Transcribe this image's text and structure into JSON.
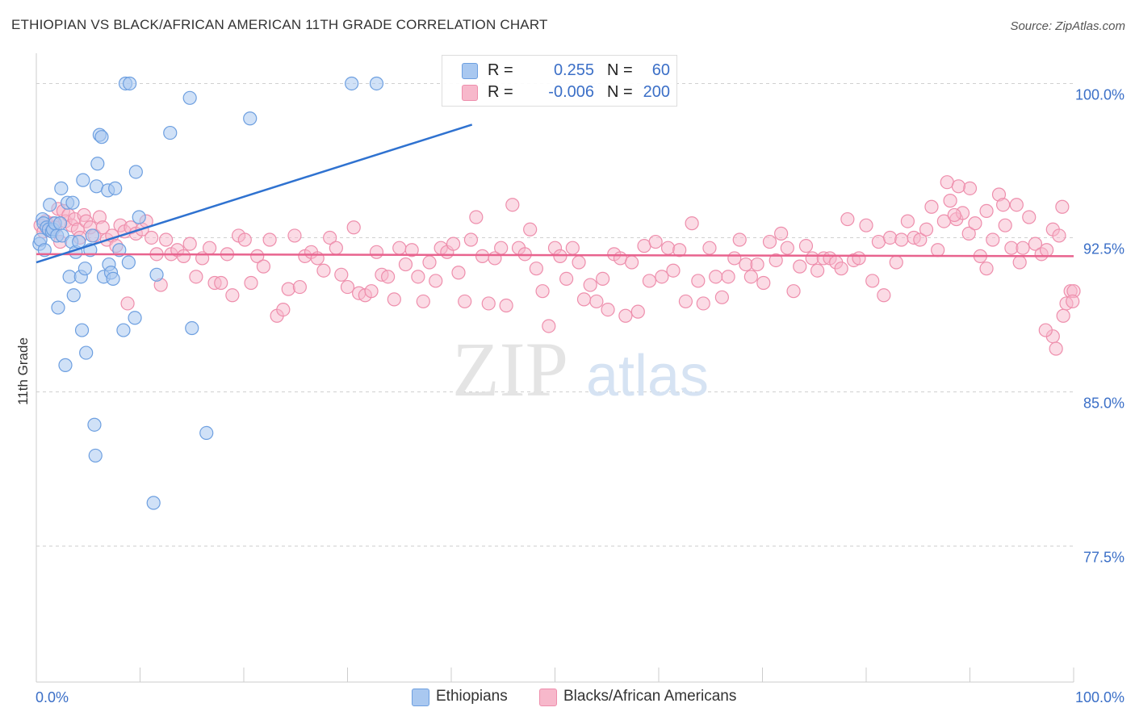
{
  "title": "ETHIOPIAN VS BLACK/AFRICAN AMERICAN 11TH GRADE CORRELATION CHART",
  "source": "Source: ZipAtlas.com",
  "watermark": {
    "zip": "ZIP",
    "atlas": "atlas"
  },
  "legend": {
    "series1": {
      "r_label": "R =",
      "r_value": "0.255",
      "n_label": "N =",
      "n_value": "60",
      "color": "#a9c8f0"
    },
    "series2": {
      "r_label": "R =",
      "r_value": "-0.006",
      "n_label": "N =",
      "n_value": "200",
      "color": "#f7b8cb"
    }
  },
  "bottom_legend": [
    {
      "label": "Ethiopians",
      "color": "#a9c8f0"
    },
    {
      "label": "Blacks/African Americans",
      "color": "#f7b8cb"
    }
  ],
  "chart_data": {
    "type": "scatter",
    "title": "ETHIOPIAN VS BLACK/AFRICAN AMERICAN 11TH GRADE CORRELATION CHART",
    "xlabel": "",
    "ylabel": "11th Grade",
    "xlim": [
      0,
      100
    ],
    "ylim": [
      71,
      101
    ],
    "x_tick_labels": [
      "0.0%",
      "100.0%"
    ],
    "y_ticks": [
      77.5,
      85.0,
      92.5,
      100.0
    ],
    "y_tick_labels": [
      "77.5%",
      "85.0%",
      "92.5%",
      "100.0%"
    ],
    "grid": "horizontal dashed",
    "colors": {
      "ethiopians_fill": "#a9c8f0",
      "ethiopians_stroke": "#6d9fe0",
      "ethiopians_line": "#2f72d0",
      "blacks_fill": "#f7b8cb",
      "blacks_stroke": "#ee8eac",
      "blacks_line": "#e8638e",
      "axis_text": "#3b6fc7"
    },
    "series": [
      {
        "name": "Ethiopians",
        "trend": {
          "x": [
            0,
            42
          ],
          "y": [
            91.3,
            98.0
          ]
        },
        "points": [
          [
            0.3,
            92.2
          ],
          [
            0.4,
            92.4
          ],
          [
            0.6,
            93.4
          ],
          [
            0.7,
            93.2
          ],
          [
            0.8,
            91.9
          ],
          [
            1.0,
            93.0
          ],
          [
            1.2,
            92.9
          ],
          [
            1.3,
            94.1
          ],
          [
            1.5,
            92.8
          ],
          [
            1.6,
            92.9
          ],
          [
            1.8,
            93.2
          ],
          [
            2.0,
            92.6
          ],
          [
            2.1,
            89.1
          ],
          [
            2.3,
            93.2
          ],
          [
            2.4,
            94.9
          ],
          [
            2.5,
            92.6
          ],
          [
            2.8,
            86.3
          ],
          [
            3.0,
            94.2
          ],
          [
            3.2,
            90.6
          ],
          [
            3.4,
            92.3
          ],
          [
            3.5,
            94.2
          ],
          [
            3.6,
            89.7
          ],
          [
            3.8,
            91.8
          ],
          [
            4.1,
            92.3
          ],
          [
            4.3,
            90.6
          ],
          [
            4.4,
            88.0
          ],
          [
            4.5,
            95.3
          ],
          [
            4.7,
            91.0
          ],
          [
            4.8,
            86.9
          ],
          [
            5.2,
            91.9
          ],
          [
            5.4,
            92.6
          ],
          [
            5.6,
            83.4
          ],
          [
            5.7,
            81.9
          ],
          [
            5.8,
            95.0
          ],
          [
            5.9,
            96.1
          ],
          [
            6.1,
            97.5
          ],
          [
            6.3,
            97.4
          ],
          [
            6.5,
            90.6
          ],
          [
            6.9,
            94.8
          ],
          [
            7.0,
            91.2
          ],
          [
            7.2,
            90.8
          ],
          [
            7.4,
            90.5
          ],
          [
            7.6,
            94.9
          ],
          [
            8.0,
            91.9
          ],
          [
            8.4,
            88.0
          ],
          [
            8.6,
            100.0
          ],
          [
            8.9,
            91.3
          ],
          [
            9.0,
            100.0
          ],
          [
            9.5,
            88.6
          ],
          [
            9.6,
            95.7
          ],
          [
            9.9,
            93.5
          ],
          [
            11.3,
            79.6
          ],
          [
            11.6,
            90.7
          ],
          [
            12.9,
            97.6
          ],
          [
            14.8,
            99.3
          ],
          [
            15.0,
            88.1
          ],
          [
            16.4,
            83.0
          ],
          [
            20.6,
            98.3
          ],
          [
            30.4,
            100.0
          ],
          [
            32.8,
            100.0
          ]
        ]
      },
      {
        "name": "Blacks/African Americans",
        "trend": {
          "x": [
            0,
            100
          ],
          "y": [
            91.7,
            91.6
          ]
        },
        "points": [
          [
            0.4,
            93.1
          ],
          [
            0.7,
            92.8
          ],
          [
            0.9,
            93.3
          ],
          [
            1.2,
            92.9
          ],
          [
            1.6,
            93.2
          ],
          [
            1.8,
            93.0
          ],
          [
            2.1,
            93.9
          ],
          [
            2.3,
            92.3
          ],
          [
            2.6,
            93.8
          ],
          [
            2.8,
            93.3
          ],
          [
            3.1,
            93.6
          ],
          [
            3.4,
            93.1
          ],
          [
            3.7,
            93.4
          ],
          [
            4.0,
            92.9
          ],
          [
            4.2,
            92.5
          ],
          [
            4.6,
            93.6
          ],
          [
            4.8,
            93.3
          ],
          [
            5.2,
            93.0
          ],
          [
            5.6,
            92.6
          ],
          [
            6.1,
            93.5
          ],
          [
            6.4,
            93.0
          ],
          [
            6.8,
            92.4
          ],
          [
            7.3,
            92.6
          ],
          [
            7.7,
            92.1
          ],
          [
            8.1,
            93.1
          ],
          [
            8.5,
            92.8
          ],
          [
            8.8,
            89.3
          ],
          [
            9.1,
            93.0
          ],
          [
            9.6,
            92.7
          ],
          [
            10.2,
            92.9
          ],
          [
            10.6,
            93.3
          ],
          [
            11.1,
            92.5
          ],
          [
            11.6,
            91.7
          ],
          [
            12.0,
            90.2
          ],
          [
            12.5,
            92.4
          ],
          [
            13.0,
            91.7
          ],
          [
            13.6,
            91.9
          ],
          [
            14.2,
            91.6
          ],
          [
            14.8,
            92.2
          ],
          [
            15.4,
            90.6
          ],
          [
            16.0,
            91.5
          ],
          [
            16.7,
            92.0
          ],
          [
            17.2,
            90.3
          ],
          [
            17.8,
            90.3
          ],
          [
            18.4,
            91.7
          ],
          [
            18.9,
            89.7
          ],
          [
            19.5,
            92.6
          ],
          [
            20.1,
            92.4
          ],
          [
            20.7,
            90.3
          ],
          [
            21.3,
            91.6
          ],
          [
            21.9,
            91.1
          ],
          [
            22.5,
            92.4
          ],
          [
            23.2,
            88.7
          ],
          [
            23.8,
            89.0
          ],
          [
            24.3,
            90.0
          ],
          [
            24.9,
            92.6
          ],
          [
            25.4,
            90.1
          ],
          [
            25.9,
            91.6
          ],
          [
            26.5,
            91.8
          ],
          [
            27.1,
            91.5
          ],
          [
            27.7,
            90.9
          ],
          [
            28.3,
            92.5
          ],
          [
            28.9,
            92.0
          ],
          [
            29.4,
            90.7
          ],
          [
            30.0,
            90.1
          ],
          [
            30.6,
            93.0
          ],
          [
            31.1,
            89.8
          ],
          [
            31.7,
            89.7
          ],
          [
            32.3,
            89.9
          ],
          [
            32.8,
            91.8
          ],
          [
            33.3,
            90.7
          ],
          [
            33.9,
            90.6
          ],
          [
            34.5,
            89.5
          ],
          [
            35.0,
            92.0
          ],
          [
            35.6,
            91.2
          ],
          [
            36.2,
            91.9
          ],
          [
            36.8,
            90.6
          ],
          [
            37.3,
            89.4
          ],
          [
            37.9,
            91.3
          ],
          [
            38.5,
            90.4
          ],
          [
            39.0,
            92.0
          ],
          [
            39.6,
            91.8
          ],
          [
            40.2,
            92.2
          ],
          [
            40.7,
            90.8
          ],
          [
            41.3,
            89.4
          ],
          [
            41.9,
            92.4
          ],
          [
            42.4,
            93.5
          ],
          [
            43.0,
            91.6
          ],
          [
            43.6,
            89.3
          ],
          [
            44.2,
            91.5
          ],
          [
            44.8,
            92.0
          ],
          [
            45.3,
            89.2
          ],
          [
            45.9,
            94.1
          ],
          [
            46.5,
            92.0
          ],
          [
            47.1,
            91.7
          ],
          [
            47.6,
            92.9
          ],
          [
            48.2,
            91.0
          ],
          [
            48.8,
            89.9
          ],
          [
            49.4,
            88.2
          ],
          [
            50.0,
            92.0
          ],
          [
            50.5,
            91.6
          ],
          [
            51.1,
            90.5
          ],
          [
            51.7,
            92.0
          ],
          [
            52.3,
            91.3
          ],
          [
            52.8,
            89.5
          ],
          [
            53.4,
            90.2
          ],
          [
            54.0,
            89.4
          ],
          [
            54.6,
            90.5
          ],
          [
            55.1,
            89.0
          ],
          [
            55.7,
            91.7
          ],
          [
            56.3,
            91.5
          ],
          [
            56.8,
            88.7
          ],
          [
            57.4,
            91.3
          ],
          [
            58.0,
            88.9
          ],
          [
            58.6,
            92.1
          ],
          [
            59.1,
            90.4
          ],
          [
            59.7,
            92.3
          ],
          [
            60.3,
            90.6
          ],
          [
            60.9,
            92.0
          ],
          [
            61.4,
            90.9
          ],
          [
            62.0,
            91.9
          ],
          [
            62.6,
            89.4
          ],
          [
            63.2,
            93.2
          ],
          [
            63.8,
            90.4
          ],
          [
            64.3,
            89.3
          ],
          [
            64.9,
            92.0
          ],
          [
            65.5,
            90.6
          ],
          [
            66.1,
            89.6
          ],
          [
            66.7,
            90.6
          ],
          [
            67.3,
            91.5
          ],
          [
            67.8,
            92.4
          ],
          [
            68.4,
            91.2
          ],
          [
            68.9,
            90.6
          ],
          [
            69.5,
            91.2
          ],
          [
            70.1,
            90.3
          ],
          [
            70.7,
            92.3
          ],
          [
            71.3,
            91.4
          ],
          [
            71.8,
            92.7
          ],
          [
            72.4,
            92.0
          ],
          [
            73.0,
            89.9
          ],
          [
            73.6,
            91.1
          ],
          [
            74.2,
            92.1
          ],
          [
            74.8,
            91.5
          ],
          [
            75.3,
            90.9
          ],
          [
            75.9,
            91.5
          ],
          [
            76.5,
            91.5
          ],
          [
            77.1,
            91.3
          ],
          [
            77.6,
            91.0
          ],
          [
            78.2,
            93.4
          ],
          [
            78.8,
            91.4
          ],
          [
            79.3,
            91.5
          ],
          [
            80.0,
            93.1
          ],
          [
            80.6,
            90.4
          ],
          [
            81.2,
            92.3
          ],
          [
            81.7,
            89.7
          ],
          [
            82.3,
            92.5
          ],
          [
            82.9,
            91.3
          ],
          [
            83.4,
            92.4
          ],
          [
            84.0,
            93.3
          ],
          [
            84.6,
            92.5
          ],
          [
            85.2,
            92.4
          ],
          [
            85.8,
            92.9
          ],
          [
            86.3,
            94.0
          ],
          [
            86.9,
            91.9
          ],
          [
            87.5,
            93.3
          ],
          [
            88.1,
            94.3
          ],
          [
            88.7,
            93.4
          ],
          [
            89.3,
            93.7
          ],
          [
            89.9,
            92.7
          ],
          [
            90.5,
            93.2
          ],
          [
            91.0,
            91.6
          ],
          [
            91.6,
            93.8
          ],
          [
            92.2,
            92.4
          ],
          [
            92.8,
            94.6
          ],
          [
            93.4,
            93.1
          ],
          [
            94.0,
            92.0
          ],
          [
            94.5,
            94.1
          ],
          [
            95.1,
            92.0
          ],
          [
            95.7,
            93.5
          ],
          [
            96.3,
            92.2
          ],
          [
            96.9,
            91.7
          ],
          [
            97.4,
            91.9
          ],
          [
            98.0,
            92.9
          ],
          [
            98.6,
            92.6
          ],
          [
            93.2,
            94.1
          ],
          [
            94.8,
            91.3
          ],
          [
            91.6,
            91.0
          ],
          [
            90.0,
            94.9
          ],
          [
            88.5,
            93.6
          ],
          [
            87.8,
            95.2
          ],
          [
            88.9,
            95.0
          ],
          [
            99.0,
            88.7
          ],
          [
            99.3,
            89.3
          ],
          [
            98.0,
            87.7
          ],
          [
            97.3,
            88.0
          ],
          [
            98.3,
            87.1
          ],
          [
            99.7,
            89.9
          ],
          [
            98.9,
            94.0
          ],
          [
            100.0,
            89.9
          ],
          [
            99.9,
            89.4
          ]
        ]
      }
    ]
  }
}
